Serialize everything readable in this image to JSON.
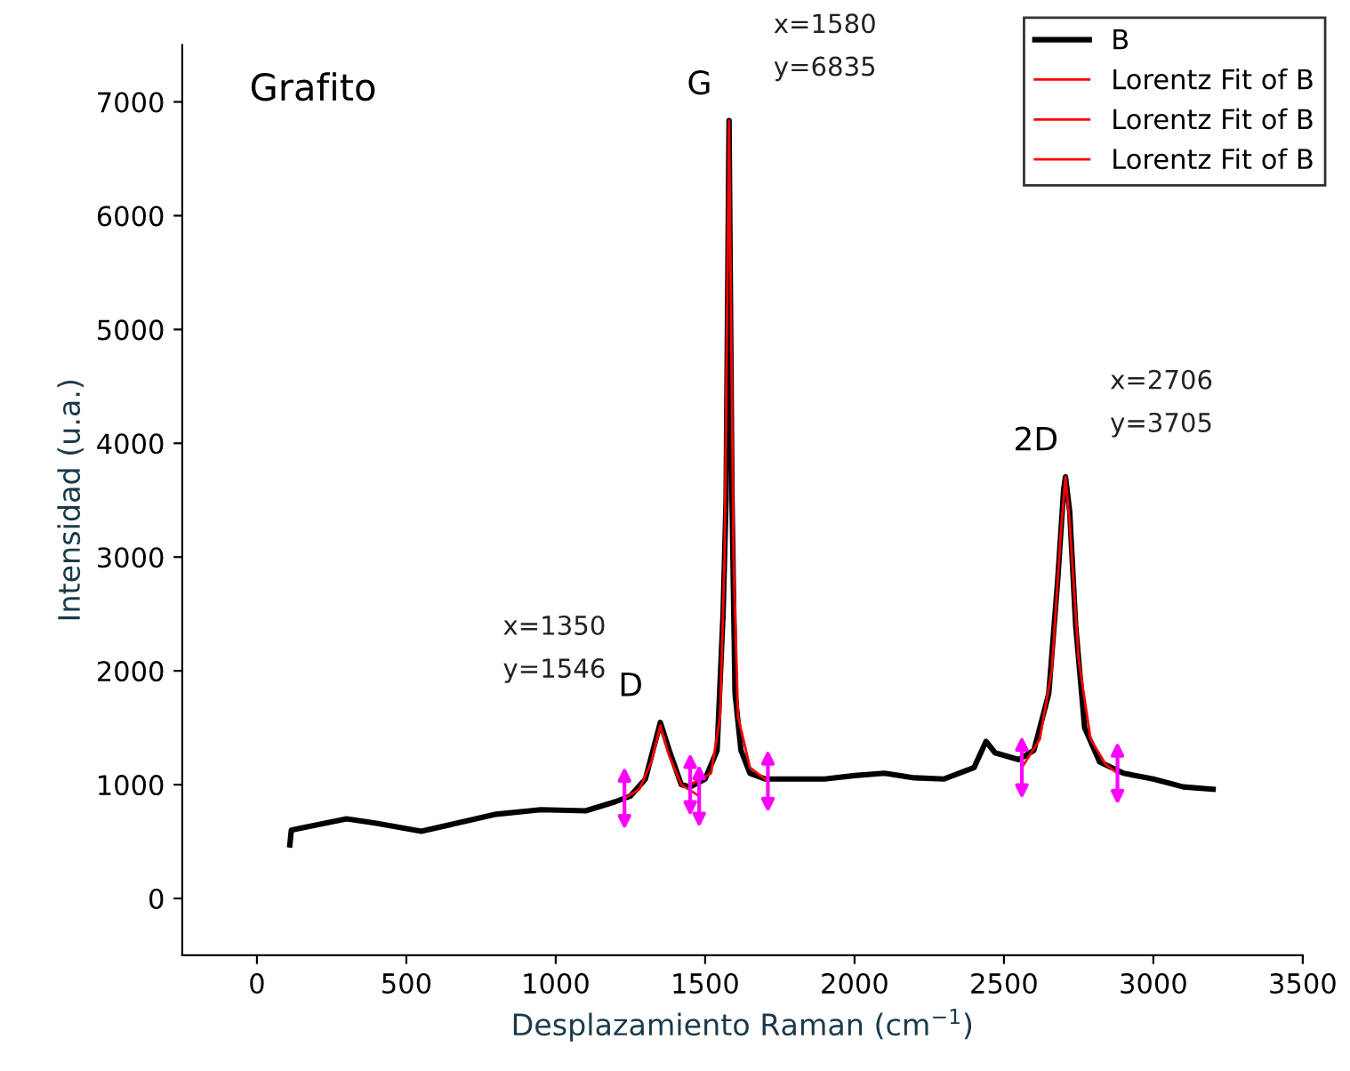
{
  "chart_data": {
    "type": "line",
    "xlabel": "Desplazamiento Raman (cm$^{−1}$)",
    "ylabel": "Intensidad (u.a.)",
    "xlim": [
      -250,
      3500
    ],
    "xticks": [
      0,
      500,
      1000,
      1500,
      2000,
      2500,
      3000,
      3500
    ],
    "ylim": [
      -500,
      7500
    ],
    "yticks": [
      0,
      1000,
      2000,
      3000,
      4000,
      5000,
      6000,
      7000
    ],
    "grid": false,
    "legend": "top right",
    "marker": "none",
    "line_style": "solid",
    "series": [
      {
        "name": "B",
        "color": "#000000",
        "x": [
          110,
          115,
          150,
          300,
          400,
          550,
          700,
          800,
          950,
          1100,
          1200,
          1250,
          1300,
          1350,
          1380,
          1420,
          1450,
          1500,
          1540,
          1560,
          1570,
          1580,
          1590,
          1600,
          1620,
          1650,
          1700,
          1800,
          1900,
          2000,
          2100,
          2200,
          2300,
          2400,
          2440,
          2470,
          2550,
          2600,
          2650,
          2680,
          2700,
          2706,
          2720,
          2740,
          2770,
          2820,
          2900,
          3000,
          3100,
          3200
        ],
        "values": [
          470,
          600,
          620,
          700,
          660,
          590,
          680,
          740,
          780,
          770,
          850,
          900,
          1050,
          1546,
          1300,
          1000,
          980,
          1050,
          1300,
          2500,
          3500,
          6835,
          3500,
          1800,
          1300,
          1100,
          1050,
          1050,
          1050,
          1080,
          1100,
          1060,
          1050,
          1150,
          1380,
          1280,
          1220,
          1300,
          1800,
          2800,
          3600,
          3705,
          3400,
          2400,
          1500,
          1200,
          1100,
          1050,
          980,
          960
        ]
      },
      {
        "name": "Lorentz Fit of B",
        "color": "#ff0000",
        "x": [
          1230,
          1280,
          1320,
          1350,
          1380,
          1420,
          1480
        ],
        "values": [
          880,
          960,
          1200,
          1520,
          1250,
          1000,
          900
        ]
      },
      {
        "name": "Lorentz Fit of B",
        "color": "#ff0000",
        "x": [
          1450,
          1520,
          1550,
          1565,
          1580,
          1595,
          1610,
          1650,
          1710
        ],
        "values": [
          1000,
          1100,
          1600,
          3000,
          6835,
          3000,
          1600,
          1150,
          1030
        ]
      },
      {
        "name": "Lorentz Fit of B",
        "color": "#ff0000",
        "x": [
          2560,
          2620,
          2660,
          2690,
          2706,
          2720,
          2750,
          2790,
          2840,
          2880
        ],
        "values": [
          1150,
          1400,
          2000,
          3200,
          3705,
          3300,
          2100,
          1400,
          1180,
          1100
        ]
      }
    ],
    "annotations": [
      {
        "text": "Grafito"
      },
      {
        "text": "D",
        "x": 1350,
        "y": 1546
      },
      {
        "text": "x=1350\ny=1546",
        "x": 1350,
        "y": 1546
      },
      {
        "text": "G",
        "x": 1580,
        "y": 6835
      },
      {
        "text": "x=1580\ny=6835",
        "x": 1580,
        "y": 6835
      },
      {
        "text": "2D",
        "x": 2706,
        "y": 3705
      },
      {
        "text": "x=2706\ny=3705",
        "x": 2706,
        "y": 3705
      }
    ]
  }
}
